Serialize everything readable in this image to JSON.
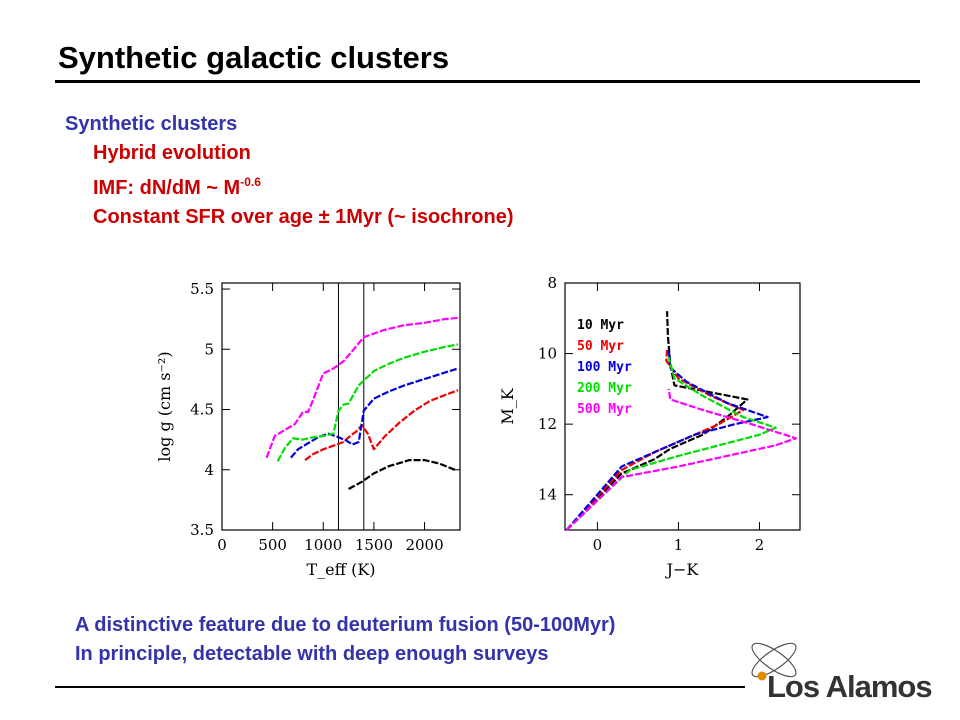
{
  "title": "Synthetic galactic clusters",
  "bullets": {
    "heading": "Synthetic clusters",
    "items": [
      {
        "text": "Hybrid evolution"
      },
      {
        "text": "IMF: dN/dM ~ M",
        "sup": "-0.6"
      },
      {
        "text": "Constant SFR over age ± 1Myr (~ isochrone)"
      }
    ]
  },
  "notes": [
    "A distinctive feature due to deuterium fusion (50-100Myr)",
    "In principle, detectable with deep enough surveys"
  ],
  "logo": {
    "text": "Los Alamos"
  },
  "colors": {
    "heading": "#3333aa",
    "bullets": "#cc0000"
  },
  "chart_data": [
    {
      "type": "line",
      "xlabel": "T_eff (K)",
      "ylabel": "log g (cm s⁻²)",
      "xlim": [
        0,
        2350
      ],
      "ylim": [
        3.5,
        5.55
      ],
      "xticks": [
        0,
        500,
        1000,
        1500,
        2000
      ],
      "yticks": [
        3.5,
        4,
        4.5,
        5,
        5.5
      ],
      "vlines": [
        1150,
        1400
      ],
      "series": [
        {
          "color": "#000000",
          "dashed": true,
          "x": [
            1250,
            1380,
            1500,
            1650,
            1850,
            2000,
            2150,
            2300
          ],
          "y": [
            3.84,
            3.9,
            3.97,
            4.03,
            4.08,
            4.08,
            4.05,
            4.0
          ]
        },
        {
          "color": "#ee0000",
          "dashed": true,
          "x": [
            820,
            900,
            1000,
            1100,
            1200,
            1280,
            1330,
            1380,
            1440,
            1500,
            1600,
            1750,
            1900,
            2050,
            2200,
            2330
          ],
          "y": [
            4.08,
            4.13,
            4.17,
            4.2,
            4.23,
            4.29,
            4.32,
            4.37,
            4.3,
            4.17,
            4.27,
            4.39,
            4.49,
            4.57,
            4.62,
            4.66
          ]
        },
        {
          "color": "#0000dd",
          "dashed": true,
          "x": [
            680,
            750,
            850,
            950,
            1050,
            1150,
            1230,
            1290,
            1350,
            1400,
            1500,
            1650,
            1800,
            1950,
            2100,
            2250,
            2330
          ],
          "y": [
            4.1,
            4.17,
            4.22,
            4.27,
            4.3,
            4.27,
            4.24,
            4.21,
            4.23,
            4.49,
            4.59,
            4.65,
            4.7,
            4.74,
            4.78,
            4.82,
            4.84
          ]
        },
        {
          "color": "#00dd00",
          "dashed": true,
          "x": [
            550,
            620,
            700,
            800,
            900,
            1000,
            1100,
            1150,
            1200,
            1250,
            1350,
            1500,
            1650,
            1800,
            2000,
            2200,
            2330
          ],
          "y": [
            4.07,
            4.18,
            4.26,
            4.25,
            4.27,
            4.28,
            4.3,
            4.49,
            4.54,
            4.55,
            4.7,
            4.82,
            4.88,
            4.93,
            4.98,
            5.02,
            5.04
          ]
        },
        {
          "color": "#ff00ff",
          "dashed": true,
          "x": [
            440,
            520,
            620,
            720,
            800,
            850,
            900,
            1000,
            1100,
            1200,
            1300,
            1400,
            1600,
            1800,
            2000,
            2200,
            2330
          ],
          "y": [
            4.1,
            4.28,
            4.33,
            4.38,
            4.48,
            4.48,
            4.58,
            4.8,
            4.84,
            4.9,
            5.0,
            5.1,
            5.16,
            5.2,
            5.22,
            5.25,
            5.26
          ]
        }
      ]
    },
    {
      "type": "line",
      "xlabel": "J−K",
      "ylabel": "M_K",
      "xlim": [
        -0.4,
        2.5
      ],
      "ylim": [
        8,
        15.0
      ],
      "xticks": [
        0,
        1,
        2
      ],
      "yticks": [
        8,
        10,
        12,
        14
      ],
      "legend": "top-right",
      "series": [
        {
          "name": "10 Myr",
          "color": "#000000",
          "dashed": true,
          "x": [
            -0.38,
            0.3,
            0.7,
            0.9,
            1.3,
            1.6,
            1.85,
            1.4,
            0.95,
            0.9,
            0.87,
            0.86
          ],
          "y": [
            15.0,
            13.4,
            13.0,
            12.7,
            12.3,
            11.8,
            11.3,
            11.1,
            10.9,
            10.3,
            9.5,
            8.8
          ]
        },
        {
          "name": "50 Myr",
          "color": "#ee0000",
          "dashed": true,
          "x": [
            -0.38,
            0.3,
            0.7,
            1.1,
            1.5,
            1.8,
            1.4,
            1.0,
            0.85,
            0.86
          ],
          "y": [
            15.0,
            13.3,
            12.8,
            12.4,
            12.0,
            11.6,
            11.2,
            10.7,
            10.2,
            9.9
          ]
        },
        {
          "name": "100 Myr",
          "color": "#0000dd",
          "dashed": true,
          "x": [
            -0.38,
            0.3,
            0.8,
            1.2,
            1.7,
            2.1,
            1.6,
            1.1,
            0.9,
            0.88
          ],
          "y": [
            15.0,
            13.2,
            12.7,
            12.3,
            12.0,
            11.8,
            11.4,
            10.8,
            10.4,
            9.9
          ]
        },
        {
          "name": "200 Myr",
          "color": "#00dd00",
          "dashed": true,
          "x": [
            -0.38,
            0.4,
            1.0,
            1.5,
            2.0,
            2.2,
            1.8,
            1.3,
            0.95,
            0.88
          ],
          "y": [
            15.0,
            13.3,
            12.9,
            12.6,
            12.3,
            12.1,
            11.8,
            11.2,
            10.7,
            10.1
          ]
        },
        {
          "name": "500 Myr",
          "color": "#ff00ff",
          "dashed": true,
          "x": [
            -0.38,
            0.3,
            1.0,
            1.6,
            2.2,
            2.45,
            1.9,
            1.3,
            0.9,
            0.88
          ],
          "y": [
            15.0,
            13.5,
            13.2,
            12.9,
            12.6,
            12.4,
            12.0,
            11.6,
            11.3,
            11.0
          ]
        }
      ]
    }
  ]
}
